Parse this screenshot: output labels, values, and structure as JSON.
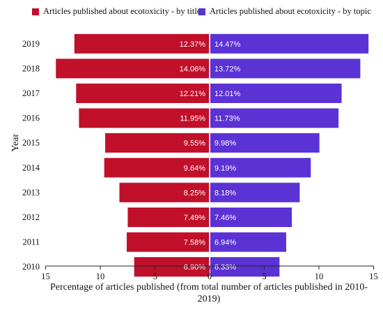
{
  "chart_data": {
    "type": "bar",
    "orientation": "horizontal-butterfly",
    "categories": [
      "2019",
      "2018",
      "2017",
      "2016",
      "2015",
      "2014",
      "2013",
      "2012",
      "2011",
      "2010"
    ],
    "series": [
      {
        "name": "Articles published about ecotoxicity - by title",
        "color": "#c0102a",
        "side": "left",
        "values": [
          12.37,
          14.06,
          12.21,
          11.95,
          9.55,
          9.64,
          8.25,
          7.49,
          7.58,
          6.9
        ],
        "labels": [
          "12.37%",
          "14.06%",
          "12.21%",
          "11.95%",
          "9.55%",
          "9.64%",
          "8.25%",
          "7.49%",
          "7.58%",
          "6.90%"
        ]
      },
      {
        "name": "Articles published about ecotoxicity - by topic",
        "color": "#5b32d4",
        "side": "right",
        "values": [
          14.47,
          13.72,
          12.01,
          11.73,
          9.98,
          9.19,
          8.18,
          7.46,
          6.94,
          6.33
        ],
        "labels": [
          "14.47%",
          "13.72%",
          "12.01%",
          "11.73%",
          "9.98%",
          "9.19%",
          "8.18%",
          "7.46%",
          "6.94%",
          "6.33%"
        ]
      }
    ],
    "xticks": [
      "15",
      "10",
      "5",
      "0",
      "5",
      "10",
      "15"
    ],
    "xlim": [
      -15,
      15
    ],
    "xlabel": "Percentage of articles published (from total number of articles published in 2010-2019)",
    "ylabel": "Year",
    "legend": "top"
  }
}
